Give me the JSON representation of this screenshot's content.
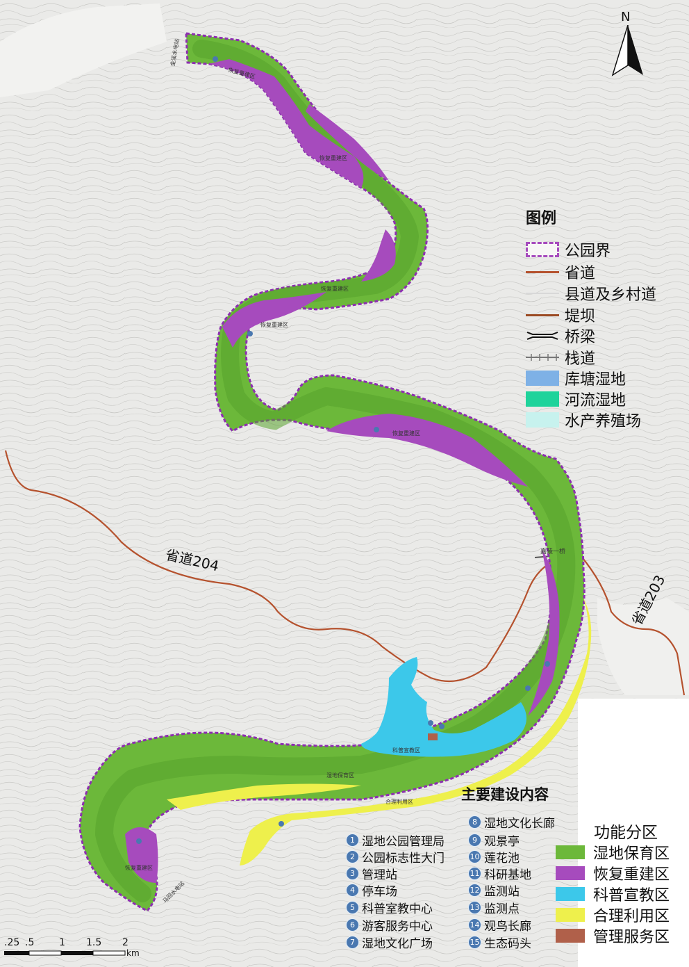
{
  "legend": {
    "title": "图例",
    "items": [
      {
        "label": "公园界",
        "kind": "boundary"
      },
      {
        "label": "省道",
        "kind": "line",
        "color": "#b5522e"
      },
      {
        "label": "县道及乡村道",
        "kind": "line",
        "color": "#d8d8d8"
      },
      {
        "label": "堤坝",
        "kind": "line",
        "color": "#9b4a22"
      },
      {
        "label": "桥梁",
        "kind": "bridge"
      },
      {
        "label": "栈道",
        "kind": "trail"
      },
      {
        "label": "库塘湿地",
        "kind": "fill",
        "color": "#7eb1e6"
      },
      {
        "label": "河流湿地",
        "kind": "fill",
        "color": "#1fd39b"
      },
      {
        "label": "水产养殖场",
        "kind": "fill",
        "color": "#c7f2ee"
      }
    ]
  },
  "functional_zones": {
    "title": "功能分区",
    "items": [
      {
        "label": "湿地保育区",
        "color": "#6cb83a"
      },
      {
        "label": "恢复重建区",
        "color": "#a64bbd"
      },
      {
        "label": "科普宣教区",
        "color": "#3cc8ea"
      },
      {
        "label": "合理利用区",
        "color": "#eef04c"
      },
      {
        "label": "管理服务区",
        "color": "#b0604a"
      }
    ]
  },
  "construction": {
    "title": "主要建设内容",
    "items": [
      {
        "num": "1",
        "label": "湿地公园管理局"
      },
      {
        "num": "2",
        "label": "公园标志性大门"
      },
      {
        "num": "3",
        "label": "管理站"
      },
      {
        "num": "4",
        "label": "停车场"
      },
      {
        "num": "5",
        "label": "科普室教中心"
      },
      {
        "num": "6",
        "label": "游客服务中心"
      },
      {
        "num": "7",
        "label": "湿地文化广场"
      },
      {
        "num": "8",
        "label": "湿地文化长廊"
      },
      {
        "num": "9",
        "label": "观景亭"
      },
      {
        "num": "10",
        "label": "莲花池"
      },
      {
        "num": "11",
        "label": "科研基地"
      },
      {
        "num": "12",
        "label": "监测站"
      },
      {
        "num": "13",
        "label": "监测点"
      },
      {
        "num": "14",
        "label": "观鸟长廊"
      },
      {
        "num": "15",
        "label": "生态码头"
      }
    ]
  },
  "roads": {
    "road204": "省道204",
    "road203": "省道203"
  },
  "north_arrow": "N",
  "scale": {
    "ticks": [
      ".25",
      ".5",
      "1",
      "1.5",
      "2"
    ],
    "unit": "km"
  },
  "map_labels": {
    "dam_north": "金溪水电站",
    "dam_south": "马回水电站",
    "zone_restore_1": "恢复重建区",
    "zone_restore_2": "恢复重建区",
    "zone_restore_3": "恢复重建区",
    "zone_restore_4": "恢复重建区",
    "zone_restore_5": "恢复重建区",
    "zone_restore_6": "恢复重建区",
    "zone_conserve": "湿地保育区",
    "zone_use": "合理利用区",
    "zone_edu": "科普宣教区",
    "bridge_label": "嘉陵一桥"
  }
}
